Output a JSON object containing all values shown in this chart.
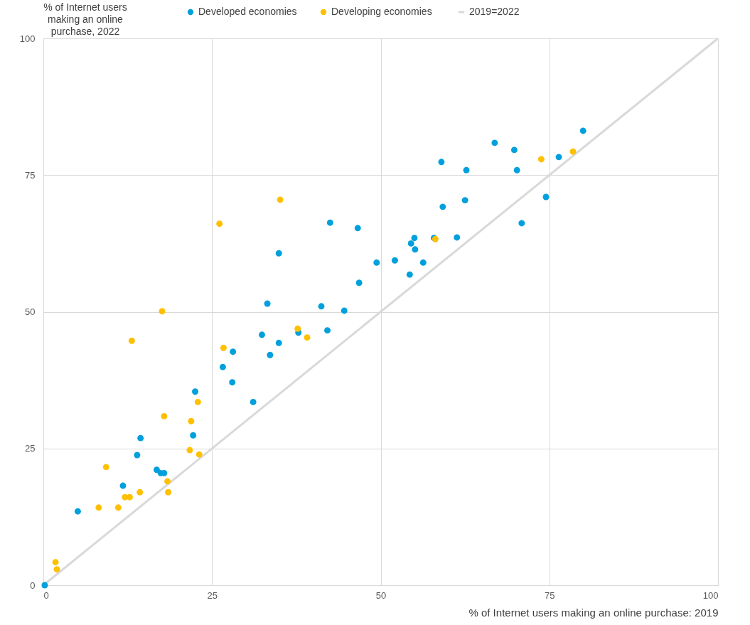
{
  "chart_data": {
    "type": "scatter",
    "ylabel": "% of Internet users making an online purchase, 2022",
    "xlabel": "% of Internet users making an online purchase: 2019",
    "xlim": [
      0,
      100
    ],
    "ylim": [
      0,
      100
    ],
    "xticks": [
      0,
      25,
      50,
      75,
      100
    ],
    "yticks": [
      0,
      25,
      50,
      75,
      100
    ],
    "grid": true,
    "legend": "top",
    "marker": "circle",
    "series": [
      {
        "name": "Developed economies",
        "color": "#00a0dc",
        "x": [
          0.2,
          5.1,
          11.8,
          13.9,
          14.4,
          16.8,
          17.4,
          17.9,
          22.2,
          22.5,
          26.6,
          28.0,
          28.1,
          31.1,
          32.4,
          33.2,
          33.6,
          34.9,
          34.9,
          37.8,
          41.2,
          42.1,
          42.5,
          44.6,
          46.6,
          46.8,
          49.4,
          52.1,
          54.3,
          54.5,
          55.0,
          55.1,
          56.3,
          57.9,
          59.0,
          59.2,
          61.3,
          62.5,
          62.7,
          66.9,
          69.8,
          70.2,
          70.9,
          74.5,
          76.4,
          80.0
        ],
        "values": [
          0,
          13.5,
          18.2,
          23.8,
          26.9,
          21.1,
          20.5,
          20.5,
          27.4,
          35.4,
          39.9,
          37.1,
          42.7,
          33.5,
          45.8,
          51.5,
          42.1,
          60.7,
          44.3,
          46.2,
          51.0,
          46.6,
          66.3,
          50.2,
          65.3,
          55.3,
          59.0,
          59.4,
          56.8,
          62.5,
          63.5,
          61.4,
          59.0,
          63.5,
          77.4,
          69.2,
          63.6,
          70.4,
          75.9,
          80.9,
          79.6,
          75.9,
          66.2,
          71.0,
          78.3,
          83.1
        ]
      },
      {
        "name": "Developing economies",
        "color": "#ffc000",
        "x": [
          1.8,
          2.0,
          8.2,
          9.3,
          11.1,
          12.1,
          12.8,
          13.1,
          14.3,
          17.6,
          17.9,
          18.4,
          18.5,
          21.7,
          21.9,
          22.9,
          23.1,
          26.1,
          26.7,
          35.1,
          37.7,
          39.1,
          58.1,
          73.8,
          78.5
        ],
        "values": [
          4.2,
          2.9,
          14.2,
          21.6,
          14.2,
          16.1,
          16.1,
          44.7,
          17.0,
          50.1,
          30.9,
          19.0,
          17.0,
          24.7,
          30.0,
          33.5,
          23.9,
          66.1,
          43.4,
          70.5,
          46.9,
          45.3,
          63.3,
          77.9,
          79.3
        ]
      },
      {
        "name": "2019=2022",
        "type": "line",
        "marker": "none",
        "color": "#d9d9d9",
        "x": [
          0,
          100
        ],
        "values": [
          0,
          100
        ]
      }
    ]
  }
}
